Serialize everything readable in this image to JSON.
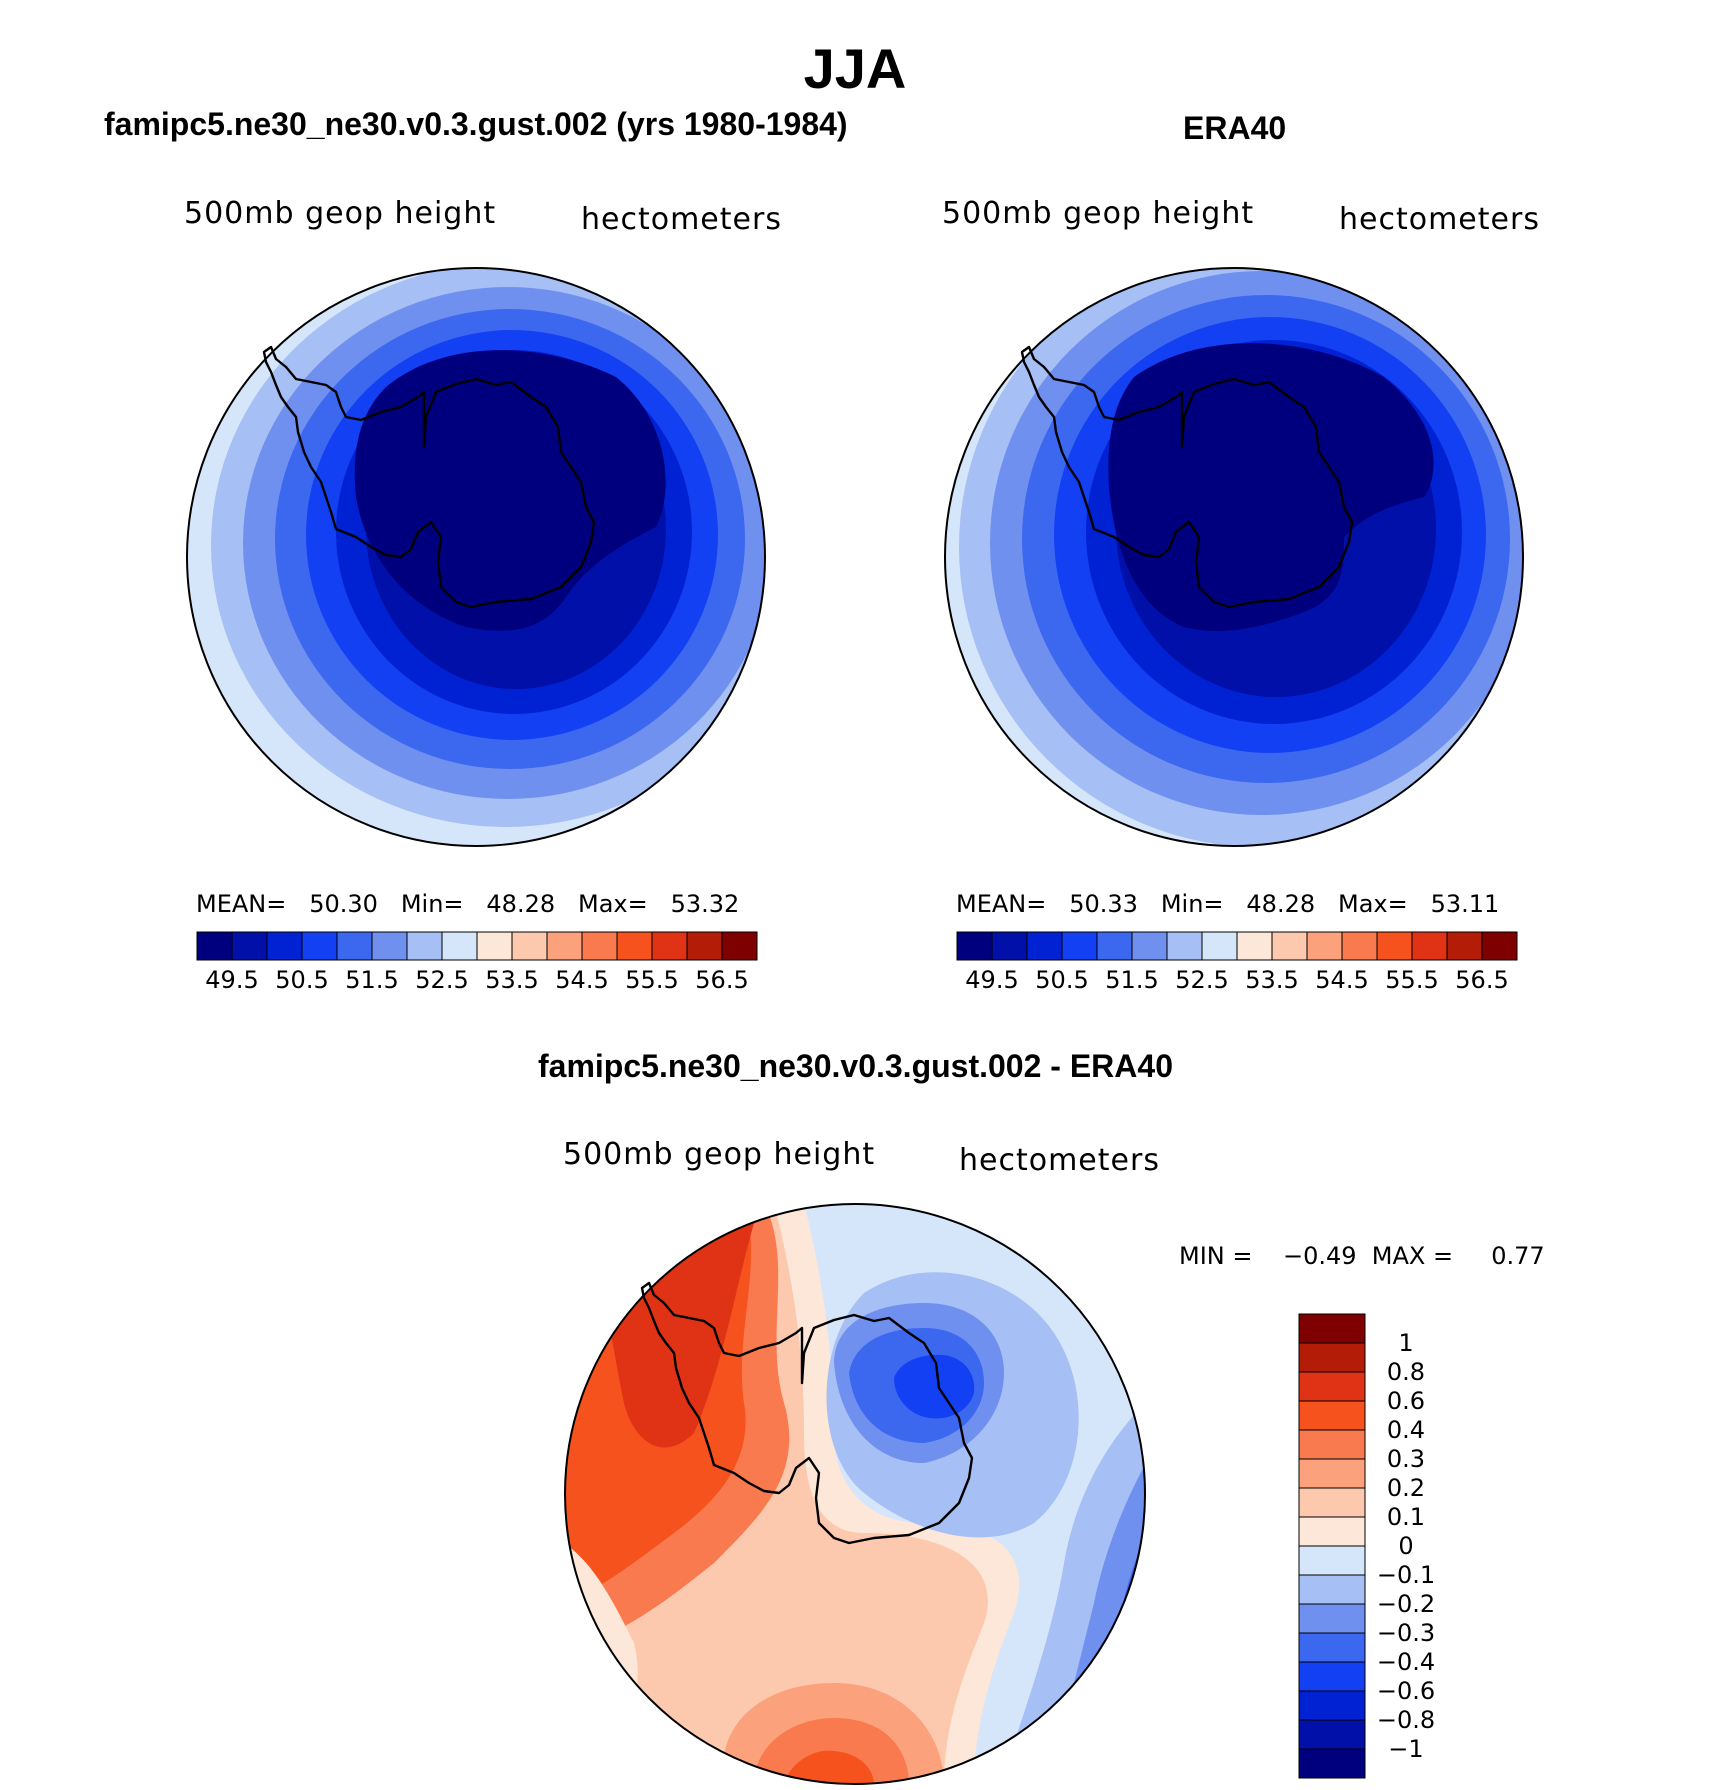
{
  "figure": {
    "season": "JJA",
    "field": "500mb geop height",
    "units": "hectometers"
  },
  "panels": {
    "model": {
      "title": "famipc5.ne30_ne30.v0.3.gust.002 (yrs 1980-1984)",
      "subtitle_left": "500mb  geop  height",
      "subtitle_right": "hectometers",
      "stats": "MEAN=   50.30   Min=   48.28   Max=   53.32"
    },
    "obs": {
      "title": "ERA40",
      "subtitle_left": "500mb  geop  height",
      "subtitle_right": "hectometers",
      "stats": "MEAN=   50.33   Min=   48.28   Max=   53.11"
    },
    "diff": {
      "title": "famipc5.ne30_ne30.v0.3.gust.002 - ERA40",
      "subtitle_left": "500mb  geop  height",
      "subtitle_right": "hectometers",
      "stats": "MIN =    −0.49  MAX =     0.77"
    }
  },
  "chart_data": [
    {
      "type": "contour-map",
      "projection": "south-polar stereographic",
      "title": "famipc5.ne30_ne30.v0.3.gust.002 (yrs 1980-1984)",
      "mean": 50.3,
      "min": 48.28,
      "max": 53.32,
      "colorbar_ticks": [
        "49.5",
        "50.5",
        "51.5",
        "52.5",
        "53.5",
        "54.5",
        "55.5",
        "56.5"
      ]
    },
    {
      "type": "contour-map",
      "projection": "south-polar stereographic",
      "title": "ERA40",
      "mean": 50.33,
      "min": 48.28,
      "max": 53.11,
      "colorbar_ticks": [
        "49.5",
        "50.5",
        "51.5",
        "52.5",
        "53.5",
        "54.5",
        "55.5",
        "56.5"
      ]
    },
    {
      "type": "contour-map",
      "projection": "south-polar stereographic",
      "title": "famipc5.ne30_ne30.v0.3.gust.002 - ERA40",
      "min": -0.49,
      "max": 0.77,
      "colorbar_ticks": [
        "1",
        "0.8",
        "0.6",
        "0.4",
        "0.3",
        "0.2",
        "0.1",
        "0",
        "−0.1",
        "−0.2",
        "−0.3",
        "−0.4",
        "−0.6",
        "−0.8",
        "−1"
      ]
    }
  ],
  "colors": {
    "seq": [
      "#00007f",
      "#0010a8",
      "#0022d2",
      "#1440f4",
      "#3c68f0",
      "#7090f0",
      "#a6bff4",
      "#d6e6fa",
      "#fde7d8",
      "#fcc8ae",
      "#fba27c",
      "#f97a4e",
      "#f5521d",
      "#e03214",
      "#b31c06",
      "#7f0000"
    ],
    "diff": [
      "#7f0000",
      "#b31c06",
      "#e03214",
      "#f5521d",
      "#f97a4e",
      "#fba27c",
      "#fcc8ae",
      "#fde7d8",
      "#d6e6fa",
      "#a6bff4",
      "#7090f0",
      "#3c68f0",
      "#1440f4",
      "#0022d2",
      "#0010a8",
      "#00007f"
    ]
  }
}
